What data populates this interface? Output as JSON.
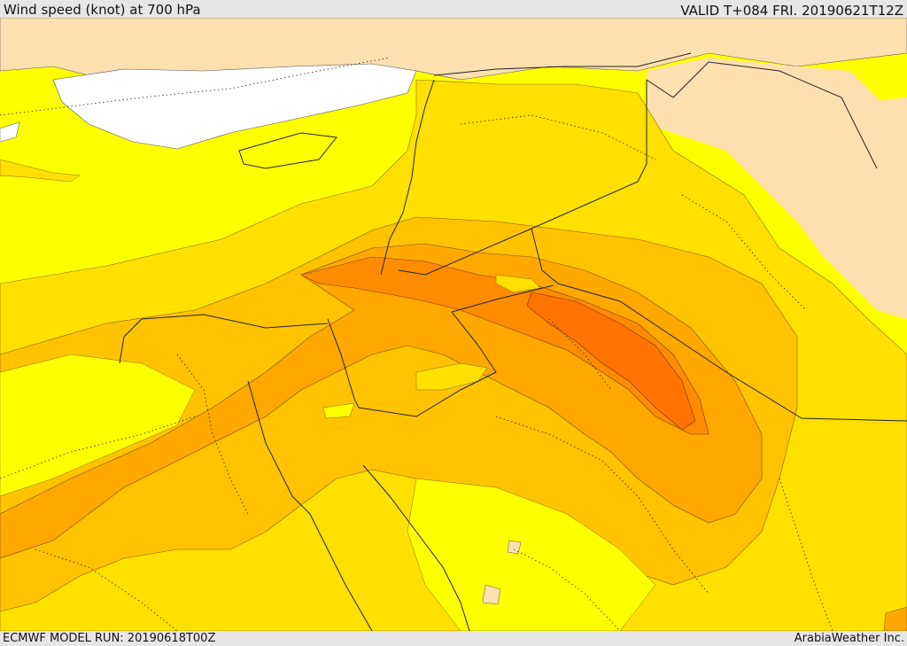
{
  "header": {
    "title": "Wind speed (knot) at 700 hPa",
    "valid_time": "VALID T+084 FRI. 20190621T12Z"
  },
  "footer": {
    "model_run": "ECMWF MODEL RUN: 20190618T00Z",
    "credit": "ArabiaWeather Inc."
  },
  "map": {
    "variable": "wind speed",
    "level_hpa": 700,
    "units": "knot",
    "colors": {
      "land_outside": "#fde0b0",
      "sea_low": "#ffffff",
      "band_1": "#ffff00",
      "band_2": "#ffe000",
      "band_3": "#ffc300",
      "band_4": "#ffa800",
      "band_5": "#ff8c00",
      "band_6": "#ff7400"
    }
  }
}
